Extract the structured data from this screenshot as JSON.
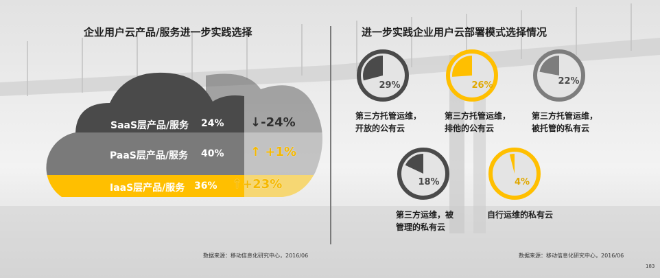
{
  "left": {
    "title": "企业用户云产品/服务进一步实践选择",
    "source": "数据来源：移动信息化研究中心，2016/06"
  },
  "right": {
    "title": "进一步实践企业用户云部署模式选择情况",
    "source": "数据来源：移动信息化研究中心，2016/06"
  },
  "page_number": "183",
  "colors": {
    "dark": "#4a4a4a",
    "mid": "#777777",
    "gold": "#ffbf00",
    "light_gold": "#f6d773",
    "gray_ring": "#7d7d7d"
  },
  "chart_data": [
    {
      "type": "bar",
      "title": "企业用户云产品/服务进一步实践选择",
      "categories": [
        "SaaS层产品/服务",
        "PaaS层产品/服务",
        "IaaS层产品/服务"
      ],
      "value_labels": [
        "24%",
        "40%",
        "36%"
      ],
      "values": [
        24,
        40,
        36
      ],
      "change_labels": [
        "-24%",
        "+1%",
        "+23%"
      ],
      "changes": [
        -24,
        1,
        23
      ],
      "change_arrows": [
        "↓",
        "↑",
        "↑"
      ]
    },
    {
      "type": "pie",
      "title": "进一步实践企业用户云部署模式选择情况",
      "slices": [
        {
          "label": "第三方托管运维，开放的公有云",
          "lines": [
            "第三方托管运维，",
            "开放的公有云"
          ],
          "value": 29,
          "value_label": "29%",
          "color": "#4a4a4a"
        },
        {
          "label": "第三方托管运维，排他的公有云",
          "lines": [
            "第三方托管运维，",
            "排他的公有云"
          ],
          "value": 26,
          "value_label": "26%",
          "color": "#ffbf00"
        },
        {
          "label": "第三方托管运维，被托管的私有云",
          "lines": [
            "第三方托管运维，",
            "被托管的私有云"
          ],
          "value": 22,
          "value_label": "22%",
          "color": "#7d7d7d"
        },
        {
          "label": "第三方运维，被管理的私有云",
          "lines": [
            "第三方运维，被",
            "管理的私有云"
          ],
          "value": 18,
          "value_label": "18%",
          "color": "#4a4a4a"
        },
        {
          "label": "自行运维的私有云",
          "lines": [
            "自行运维的私有云"
          ],
          "value": 4,
          "value_label": "4%",
          "color": "#ffbf00"
        }
      ]
    }
  ]
}
